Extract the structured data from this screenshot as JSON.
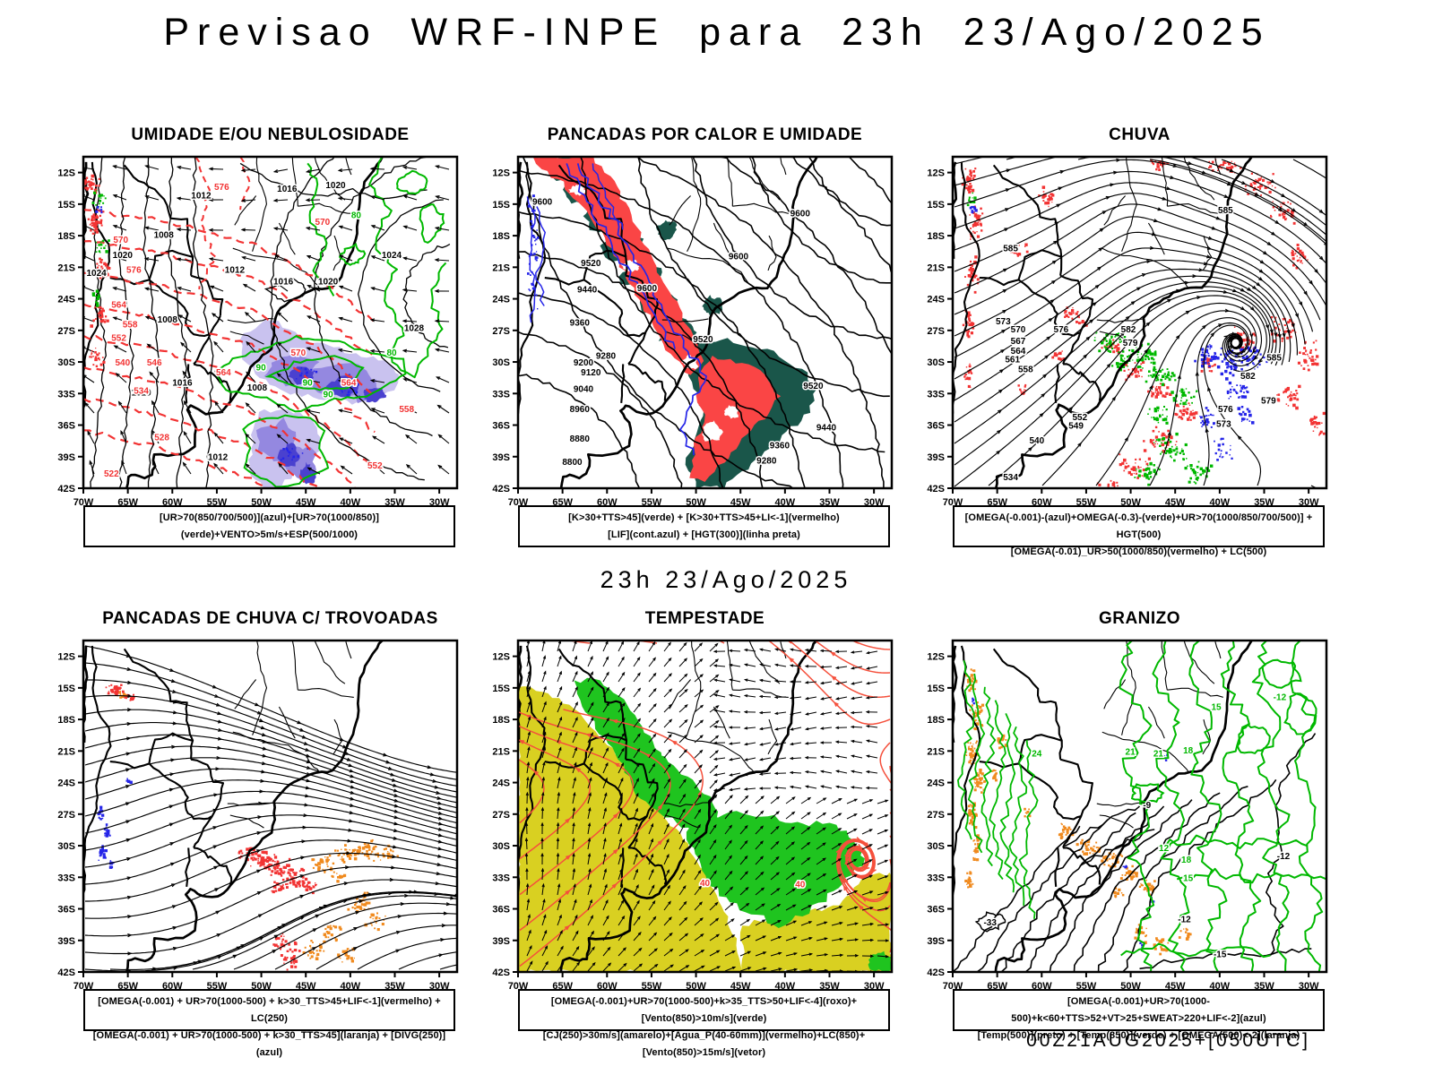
{
  "title": "Previsao WRF-INPE  para 23h 23/Ago/2025",
  "subtitle": "23h 23/Ago/2025",
  "footer": "00Z21AUG2025+[050UTC]",
  "colors": {
    "red": "#f23333",
    "panel2_red": "#fa4545",
    "teal": "#1a564a",
    "green": "#00b800",
    "green_fill": "#1fc41f",
    "yellow": "#d9d021",
    "blue": "#2525e8",
    "orange": "#f08a1e",
    "purple_light": "#c9c2ef",
    "purple_mid": "#9488e0",
    "purple_dark": "#4a41cf",
    "stream_red": "#f5503c",
    "black": "#000000"
  },
  "axis": {
    "lat": [
      "12S",
      "15S",
      "18S",
      "21S",
      "24S",
      "27S",
      "30S",
      "33S",
      "36S",
      "39S",
      "42S"
    ],
    "lon": [
      "70W",
      "65W",
      "60W",
      "55W",
      "50W",
      "45W",
      "40W",
      "35W",
      "30W"
    ]
  },
  "panels": [
    {
      "id": "umidade",
      "title": "UMIDADE E/OU NEBULOSIDADE",
      "caption": [
        "[UR>70(850/700/500)](azul)+[UR>70(1000/850)](verde)+VENTO>5m/s+ESP(500/1000)"
      ],
      "labels": [
        [
          "1012",
          0.315,
          0.125,
          "k"
        ],
        [
          "1016",
          0.545,
          0.105,
          "k"
        ],
        [
          "1020",
          0.675,
          0.095,
          "k"
        ],
        [
          "1008",
          0.215,
          0.245,
          "k"
        ],
        [
          "1020",
          0.105,
          0.305,
          "k"
        ],
        [
          "1024",
          0.825,
          0.305,
          "k"
        ],
        [
          "1024",
          0.035,
          0.36,
          "k"
        ],
        [
          "1012",
          0.405,
          0.35,
          "k"
        ],
        [
          "1016",
          0.535,
          0.385,
          "k"
        ],
        [
          "1020",
          0.655,
          0.385,
          "k"
        ],
        [
          "1008",
          0.225,
          0.5,
          "k"
        ],
        [
          "1016",
          0.265,
          0.69,
          "k"
        ],
        [
          "1020",
          0.155,
          0.72,
          "k"
        ],
        [
          "1008",
          0.465,
          0.705,
          "k"
        ],
        [
          "1012",
          0.36,
          0.915,
          "k"
        ],
        [
          "1028",
          0.885,
          0.525,
          "k"
        ],
        [
          "570",
          0.1,
          0.26,
          "r"
        ],
        [
          "576",
          0.135,
          0.35,
          "r"
        ],
        [
          "564",
          0.095,
          0.455,
          "r"
        ],
        [
          "558",
          0.125,
          0.515,
          "r"
        ],
        [
          "552",
          0.095,
          0.555,
          "r"
        ],
        [
          "540",
          0.105,
          0.63,
          "r"
        ],
        [
          "546",
          0.19,
          0.63,
          "r"
        ],
        [
          "534",
          0.155,
          0.715,
          "r"
        ],
        [
          "528",
          0.21,
          0.855,
          "r"
        ],
        [
          "522",
          0.075,
          0.965,
          "r"
        ],
        [
          "576",
          0.37,
          0.1,
          "r"
        ],
        [
          "570",
          0.64,
          0.205,
          "r"
        ],
        [
          "570",
          0.575,
          0.6,
          "r"
        ],
        [
          "564",
          0.71,
          0.69,
          "r"
        ],
        [
          "558",
          0.865,
          0.77,
          "r"
        ],
        [
          "552",
          0.78,
          0.94,
          "r"
        ],
        [
          "564",
          0.375,
          0.66,
          "r"
        ],
        [
          "80",
          0.73,
          0.185,
          "g"
        ],
        [
          "90",
          0.475,
          0.645,
          "g"
        ],
        [
          "90",
          0.6,
          0.69,
          "g"
        ],
        [
          "80",
          0.825,
          0.6,
          "g"
        ],
        [
          "90",
          0.655,
          0.725,
          "g"
        ]
      ]
    },
    {
      "id": "pancadas-calor",
      "title": "PANCADAS POR CALOR E UMIDADE",
      "caption": [
        "[K>30+TTS>45](verde) + [K>30+TTS>45+LI<-1](vermelho)",
        "[LIF](cont.azul) + [HGT(300)](linha preta)"
      ],
      "labels": [
        [
          "9600",
          0.065,
          0.145,
          "k"
        ],
        [
          "9520",
          0.195,
          0.33,
          "k"
        ],
        [
          "9440",
          0.185,
          0.41,
          "k"
        ],
        [
          "9360",
          0.165,
          0.51,
          "k"
        ],
        [
          "9280",
          0.235,
          0.61,
          "k"
        ],
        [
          "9200",
          0.175,
          0.63,
          "k"
        ],
        [
          "9120",
          0.195,
          0.66,
          "k"
        ],
        [
          "9040",
          0.175,
          0.71,
          "k"
        ],
        [
          "8960",
          0.165,
          0.77,
          "k"
        ],
        [
          "8880",
          0.165,
          0.86,
          "k"
        ],
        [
          "8800",
          0.145,
          0.93,
          "k"
        ],
        [
          "9600",
          0.755,
          0.18,
          "k"
        ],
        [
          "9600",
          0.59,
          0.31,
          "k"
        ],
        [
          "9600",
          0.345,
          0.405,
          "k"
        ],
        [
          "9520",
          0.495,
          0.56,
          "k"
        ],
        [
          "9520",
          0.79,
          0.7,
          "k"
        ],
        [
          "9440",
          0.825,
          0.825,
          "k"
        ],
        [
          "9360",
          0.7,
          0.88,
          "k"
        ],
        [
          "9280",
          0.665,
          0.925,
          "k"
        ]
      ]
    },
    {
      "id": "chuva",
      "title": "CHUVA",
      "caption": [
        "[OMEGA(-0.001)-(azul)+OMEGA(-0.3)-(verde)+UR>70(1000/850/700/500)] + HGT(500)",
        "[OMEGA(-0.01)_UR>50(1000/850)(vermelho) + LC(500)"
      ],
      "labels": [
        [
          "585",
          0.73,
          0.17,
          "k"
        ],
        [
          "585",
          0.155,
          0.285,
          "k"
        ],
        [
          "573",
          0.135,
          0.505,
          "k"
        ],
        [
          "570",
          0.175,
          0.53,
          "k"
        ],
        [
          "567",
          0.175,
          0.565,
          "k"
        ],
        [
          "564",
          0.175,
          0.595,
          "k"
        ],
        [
          "561",
          0.16,
          0.62,
          "k"
        ],
        [
          "558",
          0.195,
          0.65,
          "k"
        ],
        [
          "576",
          0.29,
          0.53,
          "k"
        ],
        [
          "582",
          0.47,
          0.53,
          "k"
        ],
        [
          "579",
          0.475,
          0.57,
          "k"
        ],
        [
          "552",
          0.34,
          0.795,
          "k"
        ],
        [
          "549",
          0.33,
          0.82,
          "k"
        ],
        [
          "540",
          0.225,
          0.865,
          "k"
        ],
        [
          "534",
          0.155,
          0.975,
          "k"
        ],
        [
          "585",
          0.86,
          0.615,
          "k"
        ],
        [
          "582",
          0.79,
          0.67,
          "k"
        ],
        [
          "579",
          0.845,
          0.745,
          "k"
        ],
        [
          "576",
          0.73,
          0.77,
          "k"
        ],
        [
          "573",
          0.725,
          0.815,
          "k"
        ]
      ]
    },
    {
      "id": "trovoadas",
      "title": "PANCADAS DE CHUVA C/ TROVOADAS",
      "caption": [
        "[OMEGA(-0.001) + UR>70(1000-500) + k>30_TTS>45+LIF<-1](vermelho) + LC(250)",
        "[OMEGA(-0.001) + UR>70(1000-500) + k>30_TTS>45](laranja) + [DIVG(250)](azul)"
      ],
      "labels": []
    },
    {
      "id": "tempestade",
      "title": "TEMPESTADE",
      "caption": [
        "[OMEGA(-0.001)+UR>70(1000-500)+k>35_TTS>50+LIF<-4](roxo)+[Vento(850)>10m/s](verde)",
        "[CJ(250)>30m/s](amarelo)+[Agua_P(40-60mm)](vermelho)+LC(850)+[Vento(850)>15m/s](vetor)"
      ],
      "labels": [
        [
          "40",
          0.5,
          0.74,
          "r"
        ],
        [
          "40",
          0.755,
          0.745,
          "r"
        ]
      ]
    },
    {
      "id": "granizo",
      "title": "GRANIZO",
      "caption": [
        "[OMEGA(-0.001)+UR>70(1000-500)+k<60+TTS>52+VT>25+SWEAT>220+LIF<-2](azul)",
        "[Temp(500)](preto) + [Temp(850)](verde) + [OMEGA(500)<-2](laranja)"
      ],
      "labels": [
        [
          "-12",
          0.885,
          0.66,
          "k"
        ],
        [
          "-12",
          0.62,
          0.85,
          "k"
        ],
        [
          "-15",
          0.715,
          0.955,
          "k"
        ],
        [
          "-33",
          0.1,
          0.86,
          "k"
        ],
        [
          "-9",
          0.52,
          0.505,
          "k"
        ],
        [
          "-12",
          0.875,
          0.18,
          "g"
        ],
        [
          "21",
          0.55,
          0.35,
          "g"
        ],
        [
          "24",
          0.225,
          0.35,
          "g"
        ],
        [
          "18",
          0.63,
          0.34,
          "g"
        ],
        [
          "15",
          0.705,
          0.21,
          "g"
        ],
        [
          "18",
          0.625,
          0.67,
          "g"
        ],
        [
          "15",
          0.63,
          0.725,
          "g"
        ],
        [
          "12",
          0.565,
          0.635,
          "g"
        ],
        [
          "21",
          0.475,
          0.345,
          "g"
        ]
      ]
    }
  ]
}
